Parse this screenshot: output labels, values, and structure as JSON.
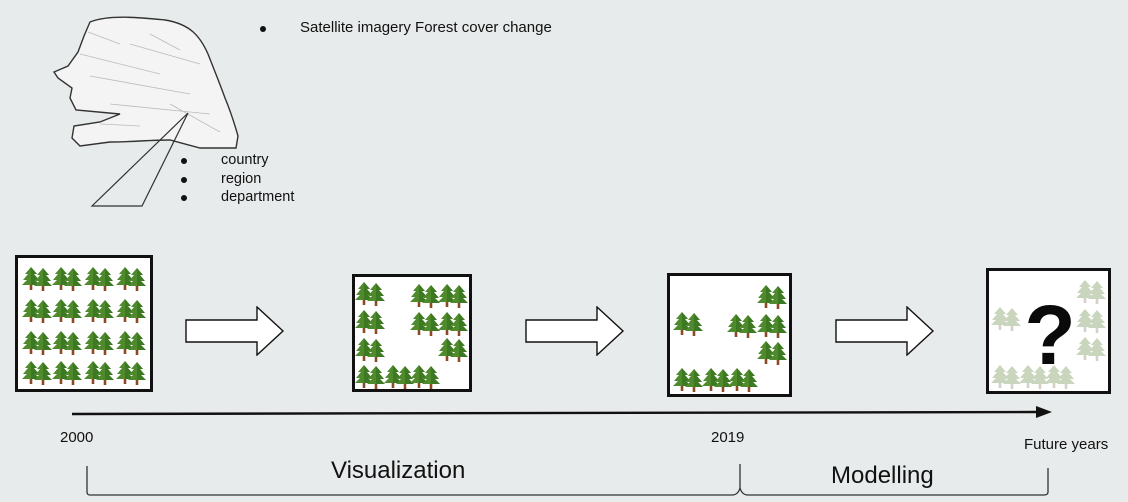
{
  "top_list": {
    "items": [
      "Satellite imagery Forest cover change"
    ]
  },
  "scale_list": {
    "items": [
      "country",
      "region",
      "department"
    ]
  },
  "timeline": {
    "year_start": "2000",
    "year_end": "2019",
    "future": "Future years",
    "unknown_mark": "?"
  },
  "sections": {
    "visualization": "Visualization",
    "modelling": "Modelling"
  },
  "colors": {
    "background": "#e8ebeb",
    "tree_green": "#4f8a2c",
    "tree_trunk": "#8a4a24",
    "faded_tree": "#c9d6bd"
  }
}
